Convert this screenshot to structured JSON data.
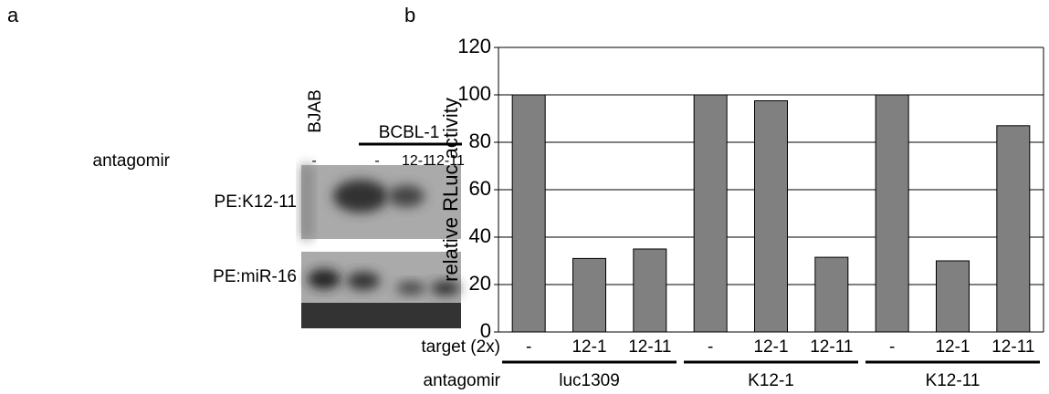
{
  "panel_a": {
    "label": "a",
    "lane_group": "BJAB",
    "cell_line": "BCBL-1",
    "row_label": "antagomir",
    "lane_labels": [
      "-",
      "-",
      "12-1",
      "12-11"
    ],
    "blots": [
      "PE:K12-11",
      "PE:miR-16"
    ]
  },
  "chart_data": {
    "type": "bar",
    "panel_label": "b",
    "y_label": "relative RLuc activity",
    "categories": [
      "-",
      "12-1",
      "12-11",
      "-",
      "12-1",
      "12-11",
      "-",
      "12-1",
      "12-11"
    ],
    "values": [
      100,
      31,
      35,
      100,
      97.5,
      31.5,
      100,
      30,
      87
    ],
    "color": "#808080",
    "category_axis_label": "target (2x)",
    "group_axis_label": "antagomir",
    "groups": [
      "luc1309",
      "K12-1",
      "K12-11"
    ],
    "ylim": [
      0,
      120
    ],
    "yticks": [
      0,
      20,
      40,
      60,
      80,
      100,
      120
    ],
    "grid": true
  }
}
